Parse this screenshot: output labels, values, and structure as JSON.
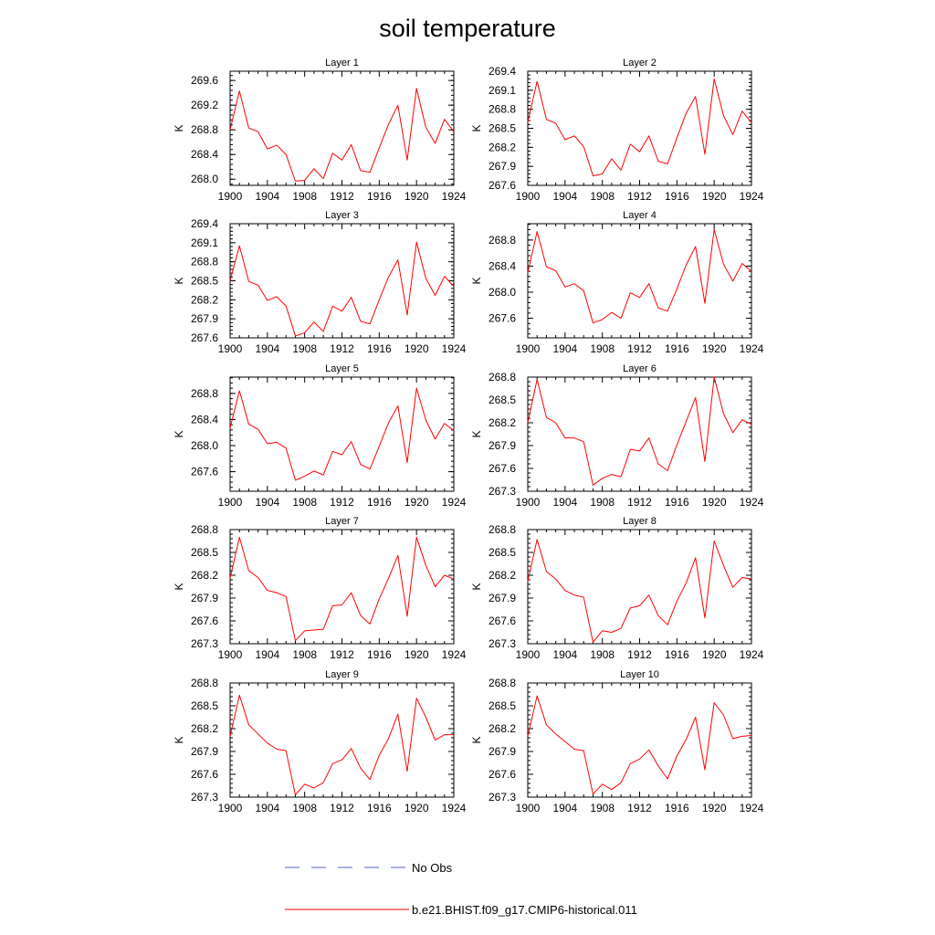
{
  "title": "soil temperature",
  "colors": {
    "model": "#ff0000",
    "obs": "#5060c8",
    "axis": "#000000"
  },
  "legend": {
    "placement": "bottom",
    "items": [
      {
        "label": "No Obs",
        "style": "dashed"
      },
      {
        "label": "b.e21.BHIST.f09_g17.CMIP6-historical.011",
        "style": "solid"
      }
    ]
  },
  "chart_data": [
    {
      "type": "line",
      "title": "Layer 1",
      "ylabel": "K",
      "x": [
        1900,
        1901,
        1902,
        1903,
        1904,
        1905,
        1906,
        1907,
        1908,
        1909,
        1910,
        1911,
        1912,
        1913,
        1914,
        1915,
        1916,
        1917,
        1918,
        1919,
        1920,
        1921,
        1922,
        1923,
        1924
      ],
      "xlim": [
        1900,
        1924
      ],
      "xticks": [
        "1900",
        "1904",
        "1908",
        "1912",
        "1916",
        "1920",
        "1924"
      ],
      "ylim": [
        267.9,
        269.75
      ],
      "yticks": [
        "268.0",
        "268.4",
        "268.8",
        "269.2",
        "269.6"
      ],
      "series": [
        {
          "values": [
            268.8,
            269.43,
            268.83,
            268.77,
            268.49,
            268.55,
            268.4,
            267.97,
            267.98,
            268.17,
            268.01,
            268.42,
            268.31,
            268.56,
            268.14,
            268.11,
            268.51,
            268.89,
            269.2,
            268.31,
            269.47,
            268.84,
            268.58,
            268.97,
            268.77
          ]
        }
      ]
    },
    {
      "type": "line",
      "title": "Layer 2",
      "ylabel": "K",
      "x": [
        1900,
        1901,
        1902,
        1903,
        1904,
        1905,
        1906,
        1907,
        1908,
        1909,
        1910,
        1911,
        1912,
        1913,
        1914,
        1915,
        1916,
        1917,
        1918,
        1919,
        1920,
        1921,
        1922,
        1923,
        1924
      ],
      "xlim": [
        1900,
        1924
      ],
      "xticks": [
        "1900",
        "1904",
        "1908",
        "1912",
        "1916",
        "1920",
        "1924"
      ],
      "ylim": [
        267.6,
        269.4
      ],
      "yticks": [
        "267.6",
        "267.9",
        "268.2",
        "268.5",
        "268.8",
        "269.1",
        "269.4"
      ],
      "series": [
        {
          "values": [
            268.6,
            269.24,
            268.64,
            268.58,
            268.32,
            268.38,
            268.21,
            267.75,
            267.78,
            268.02,
            267.84,
            268.25,
            268.13,
            268.38,
            267.98,
            267.94,
            268.35,
            268.74,
            269.0,
            268.09,
            269.28,
            268.7,
            268.4,
            268.77,
            268.59
          ]
        }
      ]
    },
    {
      "type": "line",
      "title": "Layer 3",
      "ylabel": "K",
      "x": [
        1900,
        1901,
        1902,
        1903,
        1904,
        1905,
        1906,
        1907,
        1908,
        1909,
        1910,
        1911,
        1912,
        1913,
        1914,
        1915,
        1916,
        1917,
        1918,
        1919,
        1920,
        1921,
        1922,
        1923,
        1924
      ],
      "xlim": [
        1900,
        1924
      ],
      "xticks": [
        "1900",
        "1904",
        "1908",
        "1912",
        "1916",
        "1920",
        "1924"
      ],
      "ylim": [
        267.6,
        269.4
      ],
      "yticks": [
        "267.6",
        "267.9",
        "268.2",
        "268.5",
        "268.8",
        "269.1",
        "269.4"
      ],
      "series": [
        {
          "values": [
            268.5,
            269.05,
            268.49,
            268.43,
            268.19,
            268.25,
            268.1,
            267.63,
            267.68,
            267.85,
            267.7,
            268.1,
            268.02,
            268.24,
            267.86,
            267.82,
            268.2,
            268.56,
            268.83,
            267.96,
            269.11,
            268.54,
            268.27,
            268.57,
            268.41
          ]
        }
      ]
    },
    {
      "type": "line",
      "title": "Layer 4",
      "ylabel": "K",
      "x": [
        1900,
        1901,
        1902,
        1903,
        1904,
        1905,
        1906,
        1907,
        1908,
        1909,
        1910,
        1911,
        1912,
        1913,
        1914,
        1915,
        1916,
        1917,
        1918,
        1919,
        1920,
        1921,
        1922,
        1923,
        1924
      ],
      "xlim": [
        1900,
        1924
      ],
      "xticks": [
        "1900",
        "1904",
        "1908",
        "1912",
        "1916",
        "1920",
        "1924"
      ],
      "ylim": [
        267.3,
        269.05
      ],
      "yticks": [
        "267.6",
        "268.0",
        "268.4",
        "268.8"
      ],
      "series": [
        {
          "values": [
            268.3,
            268.93,
            268.39,
            268.33,
            268.08,
            268.13,
            268.02,
            267.53,
            267.58,
            267.69,
            267.6,
            267.99,
            267.92,
            268.13,
            267.76,
            267.71,
            268.05,
            268.42,
            268.7,
            267.83,
            268.96,
            268.43,
            268.17,
            268.44,
            268.32
          ]
        }
      ]
    },
    {
      "type": "line",
      "title": "Layer 5",
      "ylabel": "K",
      "x": [
        1900,
        1901,
        1902,
        1903,
        1904,
        1905,
        1906,
        1907,
        1908,
        1909,
        1910,
        1911,
        1912,
        1913,
        1914,
        1915,
        1916,
        1917,
        1918,
        1919,
        1920,
        1921,
        1922,
        1923,
        1924
      ],
      "xlim": [
        1900,
        1924
      ],
      "xticks": [
        "1900",
        "1904",
        "1908",
        "1912",
        "1916",
        "1920",
        "1924"
      ],
      "ylim": [
        267.3,
        269.05
      ],
      "yticks": [
        "267.6",
        "268.0",
        "268.4",
        "268.8"
      ],
      "series": [
        {
          "values": [
            268.27,
            268.84,
            268.33,
            268.25,
            268.03,
            268.05,
            267.96,
            267.47,
            267.53,
            267.61,
            267.55,
            267.91,
            267.86,
            268.06,
            267.71,
            267.64,
            267.99,
            268.35,
            268.61,
            267.74,
            268.88,
            268.39,
            268.1,
            268.34,
            268.23
          ]
        }
      ]
    },
    {
      "type": "line",
      "title": "Layer 6",
      "ylabel": "K",
      "x": [
        1900,
        1901,
        1902,
        1903,
        1904,
        1905,
        1906,
        1907,
        1908,
        1909,
        1910,
        1911,
        1912,
        1913,
        1914,
        1915,
        1916,
        1917,
        1918,
        1919,
        1920,
        1921,
        1922,
        1923,
        1924
      ],
      "xlim": [
        1900,
        1924
      ],
      "xticks": [
        "1900",
        "1904",
        "1908",
        "1912",
        "1916",
        "1920",
        "1924"
      ],
      "ylim": [
        267.3,
        268.8
      ],
      "yticks": [
        "267.3",
        "267.6",
        "267.9",
        "268.2",
        "268.5",
        "268.8"
      ],
      "series": [
        {
          "values": [
            268.2,
            268.77,
            268.27,
            268.2,
            268.0,
            268.0,
            267.95,
            267.38,
            267.47,
            267.52,
            267.49,
            267.85,
            267.83,
            268.0,
            267.66,
            267.57,
            267.91,
            268.22,
            268.53,
            267.69,
            268.8,
            268.32,
            268.07,
            268.24,
            268.18
          ]
        }
      ]
    },
    {
      "type": "line",
      "title": "Layer 7",
      "ylabel": "K",
      "x": [
        1900,
        1901,
        1902,
        1903,
        1904,
        1905,
        1906,
        1907,
        1908,
        1909,
        1910,
        1911,
        1912,
        1913,
        1914,
        1915,
        1916,
        1917,
        1918,
        1919,
        1920,
        1921,
        1922,
        1923,
        1924
      ],
      "xlim": [
        1900,
        1924
      ],
      "xticks": [
        "1900",
        "1904",
        "1908",
        "1912",
        "1916",
        "1920",
        "1924"
      ],
      "ylim": [
        267.3,
        268.8
      ],
      "yticks": [
        "267.3",
        "267.6",
        "267.9",
        "268.2",
        "268.5",
        "268.8"
      ],
      "series": [
        {
          "values": [
            268.16,
            268.7,
            268.26,
            268.17,
            268.0,
            267.97,
            267.92,
            267.34,
            267.47,
            267.48,
            267.49,
            267.8,
            267.81,
            267.97,
            267.67,
            267.56,
            267.89,
            268.16,
            268.46,
            267.66,
            268.7,
            268.33,
            268.05,
            268.2,
            268.15
          ]
        }
      ]
    },
    {
      "type": "line",
      "title": "Layer 8",
      "ylabel": "K",
      "x": [
        1900,
        1901,
        1902,
        1903,
        1904,
        1905,
        1906,
        1907,
        1908,
        1909,
        1910,
        1911,
        1912,
        1913,
        1914,
        1915,
        1916,
        1917,
        1918,
        1919,
        1920,
        1921,
        1922,
        1923,
        1924
      ],
      "xlim": [
        1900,
        1924
      ],
      "xticks": [
        "1900",
        "1904",
        "1908",
        "1912",
        "1916",
        "1920",
        "1924"
      ],
      "ylim": [
        267.3,
        268.8
      ],
      "yticks": [
        "267.3",
        "267.6",
        "267.9",
        "268.2",
        "268.5",
        "268.8"
      ],
      "series": [
        {
          "values": [
            268.12,
            268.67,
            268.25,
            268.15,
            268.0,
            267.94,
            267.91,
            267.32,
            267.47,
            267.45,
            267.5,
            267.77,
            267.8,
            267.94,
            267.67,
            267.55,
            267.86,
            268.1,
            268.43,
            267.64,
            268.65,
            268.33,
            268.04,
            268.17,
            268.15
          ]
        }
      ]
    },
    {
      "type": "line",
      "title": "Layer 9",
      "ylabel": "K",
      "x": [
        1900,
        1901,
        1902,
        1903,
        1904,
        1905,
        1906,
        1907,
        1908,
        1909,
        1910,
        1911,
        1912,
        1913,
        1914,
        1915,
        1916,
        1917,
        1918,
        1919,
        1920,
        1921,
        1922,
        1923,
        1924
      ],
      "xlim": [
        1900,
        1924
      ],
      "xticks": [
        "1900",
        "1904",
        "1908",
        "1912",
        "1916",
        "1920",
        "1924"
      ],
      "ylim": [
        267.3,
        268.8
      ],
      "yticks": [
        "267.3",
        "267.6",
        "267.9",
        "268.2",
        "268.5",
        "268.8"
      ],
      "series": [
        {
          "values": [
            268.1,
            268.64,
            268.25,
            268.13,
            268.01,
            267.93,
            267.91,
            267.33,
            267.47,
            267.42,
            267.49,
            267.74,
            267.79,
            267.94,
            267.68,
            267.53,
            267.85,
            268.07,
            268.39,
            267.64,
            268.6,
            268.35,
            268.05,
            268.12,
            268.12
          ]
        }
      ]
    },
    {
      "type": "line",
      "title": "Layer 10",
      "ylabel": "K",
      "x": [
        1900,
        1901,
        1902,
        1903,
        1904,
        1905,
        1906,
        1907,
        1908,
        1909,
        1910,
        1911,
        1912,
        1913,
        1914,
        1915,
        1916,
        1917,
        1918,
        1919,
        1920,
        1921,
        1922,
        1923,
        1924
      ],
      "xlim": [
        1900,
        1924
      ],
      "xticks": [
        "1900",
        "1904",
        "1908",
        "1912",
        "1916",
        "1920",
        "1924"
      ],
      "ylim": [
        267.3,
        268.8
      ],
      "yticks": [
        "267.3",
        "267.6",
        "267.9",
        "268.2",
        "268.5",
        "268.8"
      ],
      "series": [
        {
          "values": [
            268.1,
            268.63,
            268.25,
            268.13,
            268.03,
            267.93,
            267.91,
            267.34,
            267.47,
            267.4,
            267.49,
            267.74,
            267.8,
            267.92,
            267.71,
            267.54,
            267.84,
            268.06,
            268.35,
            267.66,
            268.54,
            268.38,
            268.07,
            268.1,
            268.11
          ]
        }
      ]
    }
  ]
}
